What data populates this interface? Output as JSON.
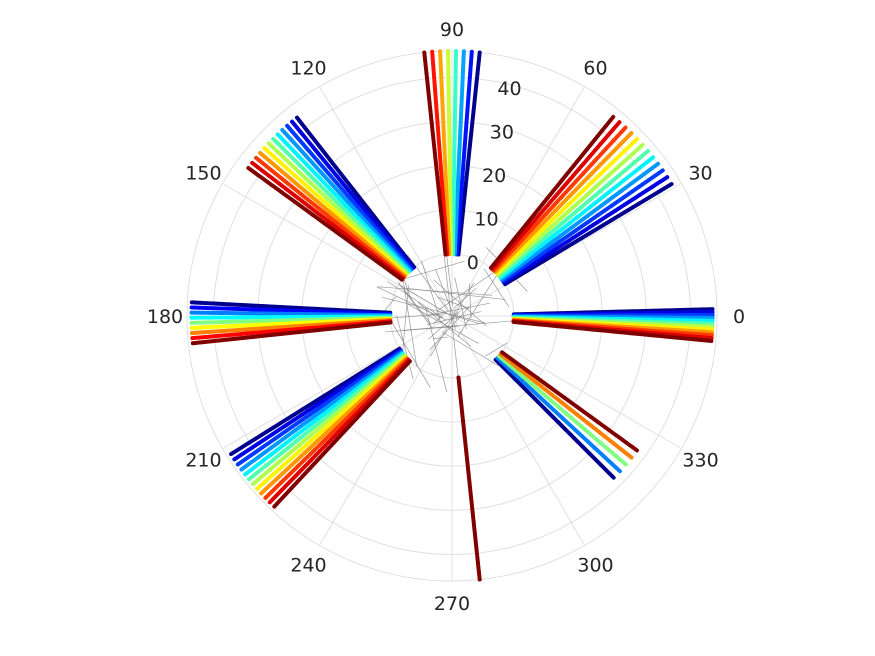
{
  "chart_data": {
    "type": "polar",
    "title": "",
    "grid": true,
    "r_range": [
      -14,
      46
    ],
    "r_ticks": [
      0,
      10,
      20,
      30,
      40
    ],
    "r_tick_labels": [
      "0",
      "10",
      "20",
      "30",
      "40"
    ],
    "theta_ticks": [
      0,
      30,
      60,
      90,
      120,
      150,
      180,
      210,
      240,
      270,
      300,
      330
    ],
    "theta_tick_labels": [
      "0",
      "30",
      "60",
      "90",
      "120",
      "150",
      "180",
      "210",
      "240",
      "270",
      "300",
      "330"
    ],
    "colormap": [
      "#00008f",
      "#0000ff",
      "#0080ff",
      "#00ffff",
      "#80ff80",
      "#ffff00",
      "#ff8000",
      "#ff0000",
      "#800000"
    ],
    "ray_groups": [
      {
        "theta_start": 1.5,
        "theta_end": -5.5,
        "count": 12,
        "r_min": 0,
        "r_max": 45
      },
      {
        "theta_start": 31,
        "theta_end": 51,
        "count": 12,
        "r_min": 0,
        "r_max": 44
      },
      {
        "theta_start": 84,
        "theta_end": 96,
        "count": 8,
        "r_min": 0,
        "r_max": 46
      },
      {
        "theta_start": 128,
        "theta_end": 144,
        "count": 12,
        "r_min": 0,
        "r_max": 43
      },
      {
        "theta_start": 177,
        "theta_end": 186,
        "count": 9,
        "r_min": 0,
        "r_max": 45
      },
      {
        "theta_start": 212,
        "theta_end": 227,
        "count": 12,
        "r_min": 0,
        "r_max": 45
      },
      {
        "theta_start": 276,
        "theta_end": 276,
        "count": 1,
        "r_min": 0,
        "r_max": 46
      },
      {
        "theta_start": 315,
        "theta_end": 324,
        "count": 5,
        "r_min": 0,
        "r_max": 38
      }
    ],
    "center_lines": {
      "count": 48,
      "r_max": 4.5,
      "color": "#808080"
    }
  }
}
